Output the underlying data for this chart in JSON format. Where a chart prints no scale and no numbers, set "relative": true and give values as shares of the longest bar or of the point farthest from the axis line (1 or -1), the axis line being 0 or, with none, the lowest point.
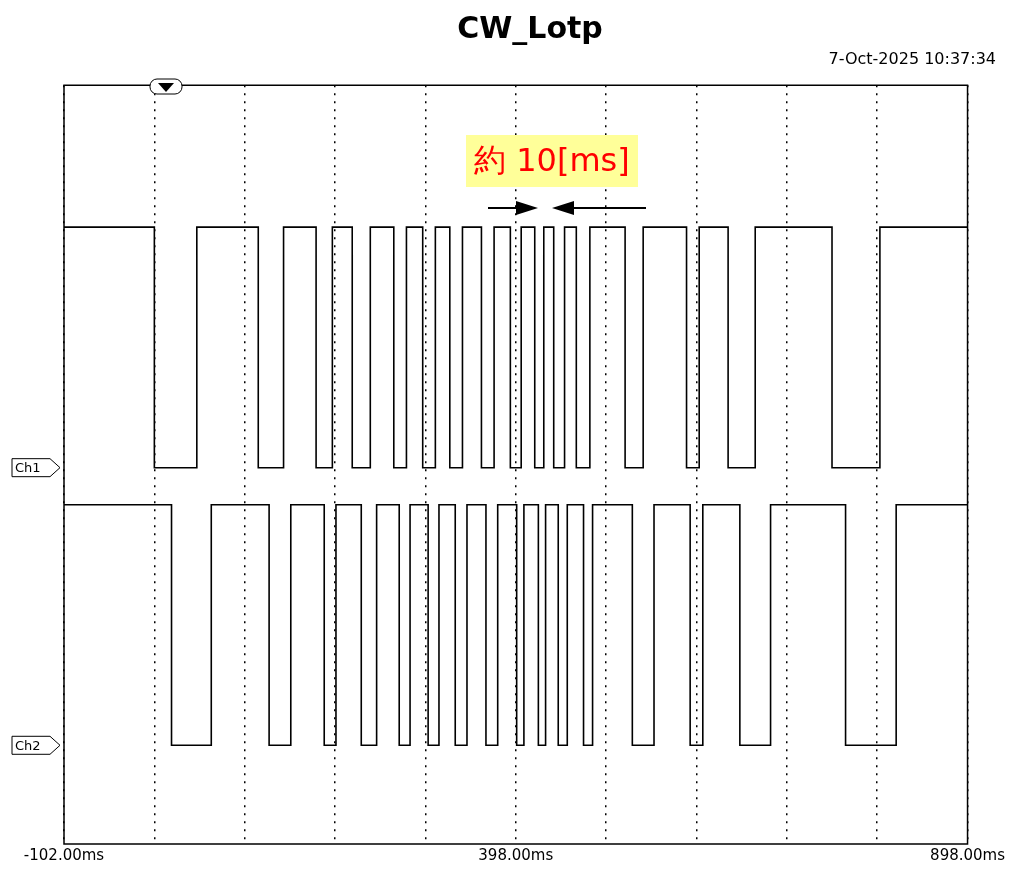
{
  "chart_data": {
    "type": "step",
    "title": "CW_Lotp",
    "subtitle": "7-Oct-2025 10:37:34",
    "annotations": [
      "約 10[ms]"
    ],
    "relative": true,
    "grid": "x",
    "legend": "left",
    "tick_labels": "x",
    "xlim": [
      -102,
      898
    ],
    "xticks": [
      {
        "value": -102,
        "label": "-102.00ms"
      },
      {
        "value": -2,
        "label": null
      },
      {
        "value": 98,
        "label": null
      },
      {
        "value": 198,
        "label": null
      },
      {
        "value": 298,
        "label": null
      },
      {
        "value": 398,
        "label": "398.00ms"
      },
      {
        "value": 498,
        "label": null
      },
      {
        "value": 598,
        "label": null
      },
      {
        "value": 698,
        "label": null
      },
      {
        "value": 798,
        "label": null
      },
      {
        "value": 898,
        "label": "898.00ms"
      }
    ],
    "series": [
      {
        "name": "Ch1",
        "color": "#000000",
        "x": [
          -102,
          -2,
          45,
          113,
          141,
          177,
          195,
          217,
          237,
          263,
          277,
          295,
          309,
          325,
          339,
          360,
          374,
          392,
          404,
          419,
          429,
          440,
          452,
          465,
          480,
          519,
          539,
          587,
          601,
          633,
          663,
          748,
          801,
          898
        ],
        "values": [
          1,
          0.61,
          1,
          0.61,
          1,
          0.61,
          1,
          0.61,
          1,
          0.61,
          1,
          0.61,
          1,
          0.61,
          1,
          0.61,
          1,
          0.61,
          1,
          0.61,
          1,
          0.61,
          1,
          0.61,
          1,
          0.61,
          1,
          0.61,
          1,
          0.61,
          1,
          0.61,
          1,
          1
        ]
      },
      {
        "name": "Ch2",
        "color": "#000000",
        "x": [
          -102,
          17,
          61,
          125,
          149,
          186,
          199,
          227,
          244,
          269,
          281,
          301,
          313,
          331,
          344,
          365,
          378,
          399,
          407,
          423,
          431,
          445,
          455,
          473,
          483,
          527,
          551,
          591,
          605,
          646,
          680,
          763,
          819,
          898
        ],
        "values": [
          0.55,
          0.16,
          0.55,
          0.16,
          0.55,
          0.16,
          0.55,
          0.16,
          0.55,
          0.16,
          0.55,
          0.16,
          0.55,
          0.16,
          0.55,
          0.16,
          0.55,
          0.16,
          0.55,
          0.16,
          0.55,
          0.16,
          0.55,
          0.16,
          0.55,
          0.16,
          0.55,
          0.16,
          0.55,
          0.16,
          0.55,
          0.16,
          0.55,
          0.55
        ]
      }
    ]
  }
}
